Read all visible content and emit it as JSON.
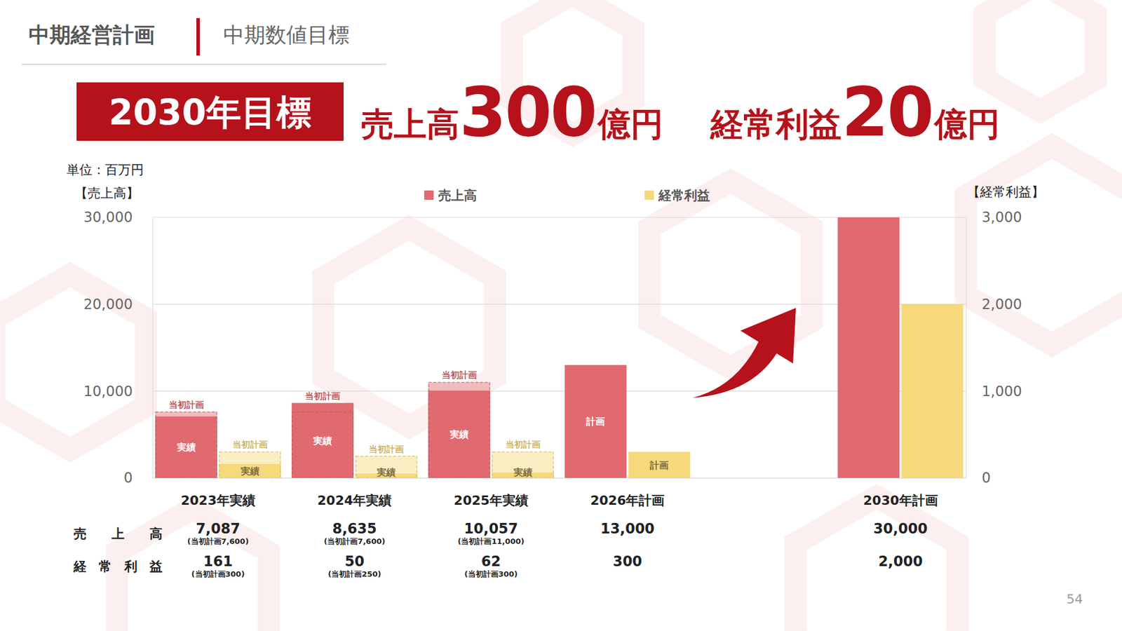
{
  "header": {
    "title": "中期経営計画",
    "subtitle": "中期数値目標"
  },
  "headline": {
    "badge": "2030年目標",
    "items": [
      {
        "label": "売上高",
        "value": 300,
        "unit": "億円"
      },
      {
        "label": "経常利益",
        "value": 20,
        "unit": "億円"
      }
    ]
  },
  "chart_data": {
    "type": "bar",
    "unit_note": "単位：百万円",
    "y_label": "【売上高】",
    "y2_label": "【経常利益】",
    "categories": [
      "2023年実績",
      "2024年実績",
      "2025年実績",
      "2026年計画",
      null,
      "2030年計画"
    ],
    "series": [
      {
        "name": "売上高",
        "color": "#e06a6f",
        "axis": "y",
        "values": [
          7087,
          8635,
          10057,
          13000,
          null,
          30000
        ],
        "initial_plan": [
          7600,
          7600,
          11000,
          null,
          null,
          null
        ],
        "bar_labels": [
          "実績",
          "実績",
          "実績",
          "計画",
          null,
          null
        ]
      },
      {
        "name": "経常利益",
        "color": "#f5d97a",
        "axis": "y2",
        "values": [
          161,
          50,
          62,
          300,
          null,
          2000
        ],
        "initial_plan": [
          300,
          250,
          300,
          null,
          null,
          null
        ],
        "bar_labels": [
          "実績",
          "実績",
          "実績",
          "計画",
          null,
          null
        ]
      }
    ],
    "initial_plan_label": "当初計画",
    "ylim": [
      0,
      30000
    ],
    "yticks": [
      0,
      {
        "value": 10000,
        "label": "10,000"
      },
      {
        "value": 20000,
        "label": "20,000"
      },
      {
        "value": 30000,
        "label": "30,000"
      }
    ],
    "y2lim": [
      0,
      3000
    ],
    "y2ticks": [
      0,
      {
        "value": 1000,
        "label": "1,000"
      },
      {
        "value": 2000,
        "label": "2,000"
      },
      {
        "value": 3000,
        "label": "3,000"
      }
    ],
    "grid": true,
    "legend": "top"
  },
  "table": {
    "rows": [
      {
        "label": "売上高",
        "values": [
          "7,087",
          "8,635",
          "10,057",
          "13,000",
          null,
          "30,000"
        ],
        "notes": [
          "(当初計画7,600)",
          "(当初計画7,600)",
          "(当初計画11,000)",
          null,
          null,
          null
        ]
      },
      {
        "label": "経常利益",
        "values": [
          "161",
          "50",
          "62",
          "300",
          null,
          "2,000"
        ],
        "notes": [
          "(当初計画300)",
          "(当初計画250)",
          "(当初計画300)",
          null,
          null,
          null
        ]
      }
    ]
  },
  "page_number": 54
}
